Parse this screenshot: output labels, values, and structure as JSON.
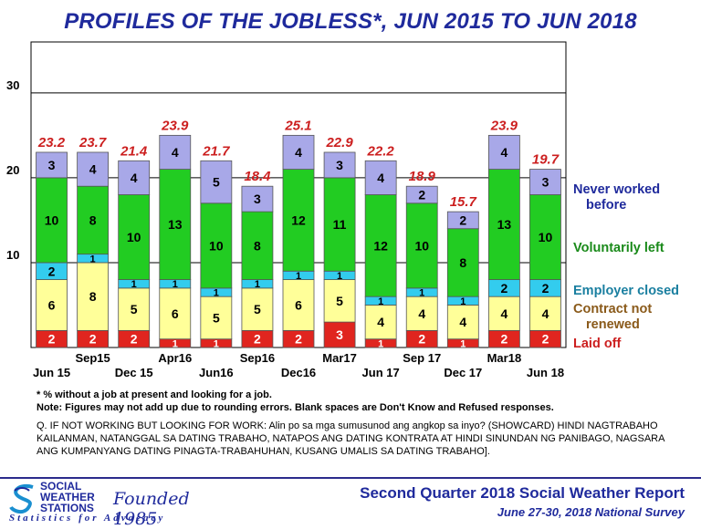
{
  "title": "PROFILES OF THE JOBLESS*, JUN 2015 TO JUN 2018",
  "notes": {
    "footnote": "* % without a job at present and looking for a job.",
    "note": "Note: Figures may not add up due to rounding errors.  Blank spaces are Don't Know and Refused responses.",
    "question": "Q. IF NOT WORKING BUT LOOKING FOR WORK:  Alin po sa mga sumusunod ang angkop sa inyo? (SHOWCARD) HINDI NAGTRABAHO KAILANMAN, NATANGGAL SA DATING TRABAHO, NATAPOS ANG DATING KONTRATA AT HINDI SINUNDAN NG PANIBAGO, NAGSARA ANG KUMPANYANG DATING PINAGTA-TRABAHUHAN, KUSANG UMALIS SA DATING TRABAHO]."
  },
  "footer": {
    "org_line1": "SOCIAL",
    "org_line2": "WEATHER",
    "org_line3": "STATIONS",
    "founded": "Founded 1985",
    "tagline": "Statistics for Advocacy",
    "report_title": "Second Quarter 2018 Social Weather Report",
    "report_subtitle": "June 27-30, 2018 National Survey"
  },
  "chart_data": {
    "type": "bar",
    "stacked": true,
    "title": "PROFILES OF THE JOBLESS*, JUN 2015 TO JUN 2018",
    "xlabel": "",
    "ylabel": "",
    "ylim": [
      0,
      36
    ],
    "yticks": [
      10,
      20,
      30
    ],
    "grid": true,
    "legend_position": "right",
    "categories": [
      "Jun 15",
      "Sep15",
      "Dec 15",
      "Apr16",
      "Jun16",
      "Sep16",
      "Dec16",
      "Mar17",
      "Jun 17",
      "Sep 17",
      "Dec 17",
      "Mar18",
      "Jun 18"
    ],
    "totals": [
      "23.2",
      "23.7",
      "21.4",
      "23.9",
      "21.7",
      "18.4",
      "25.1",
      "22.9",
      "22.2",
      "18.9",
      "15.7",
      "23.9",
      "19.7"
    ],
    "series": [
      {
        "name": "Laid off",
        "color": "#e0251f",
        "label_color": "#ffffff",
        "values": [
          2,
          2,
          2,
          1,
          1,
          2,
          2,
          3,
          1,
          2,
          1,
          2,
          2
        ]
      },
      {
        "name": "Contract not renewed",
        "color": "#ffff99",
        "label_color": "#000000",
        "values": [
          6,
          8,
          5,
          6,
          5,
          5,
          6,
          5,
          4,
          4,
          4,
          4,
          4
        ]
      },
      {
        "name": "Employer closed",
        "color": "#33ccee",
        "label_color": "#000000",
        "values": [
          2,
          1,
          1,
          1,
          1,
          1,
          1,
          1,
          1,
          1,
          1,
          2,
          2
        ]
      },
      {
        "name": "Voluntarily left",
        "color": "#22cc22",
        "label_color": "#000000",
        "values": [
          10,
          8,
          10,
          13,
          10,
          8,
          12,
          11,
          12,
          10,
          8,
          13,
          10
        ]
      },
      {
        "name": "Never worked before",
        "color": "#a8a8e8",
        "label_color": "#000000",
        "values": [
          3,
          4,
          4,
          4,
          5,
          3,
          4,
          3,
          4,
          2,
          2,
          4,
          3
        ]
      }
    ],
    "legend_colors": {
      "Never worked before": "#1f2a9c",
      "Voluntarily left": "#1a8a1a",
      "Employer closed": "#1a7fa0",
      "Contract not renewed": "#8a5a1a",
      "Laid off": "#cc1f1f"
    },
    "total_label_color": "#cc1f1f"
  }
}
